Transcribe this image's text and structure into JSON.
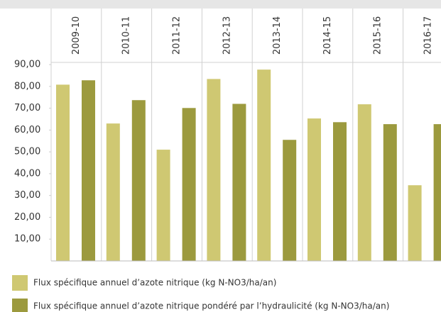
{
  "chart_data": {
    "type": "bar",
    "categories": [
      "2009-10",
      "2010-11",
      "2011-12",
      "2012-13",
      "2013-14",
      "2014-15",
      "2015-16",
      "2016-17"
    ],
    "series": [
      {
        "name": "Flux spécifique annuel d’azote nitrique (kg N-NO3/ha/an)",
        "color": "#cfc872",
        "values": [
          80.8,
          63,
          51,
          83.4,
          87.7,
          65.3,
          71.8,
          34.7
        ]
      },
      {
        "name": "Flux spécifique annuel d’azote nitrique pondéré par l’hydraulicité (kg N-NO3/ha/an)",
        "color": "#9c9a3e",
        "values": [
          82.8,
          73.7,
          70.1,
          72,
          55.5,
          63.6,
          62.7,
          62.7
        ]
      }
    ],
    "ylim": [
      0,
      91
    ],
    "yticks": [
      {
        "value": 10,
        "label": "10,00"
      },
      {
        "value": 20,
        "label": "20,00"
      },
      {
        "value": 30,
        "label": "30,00"
      },
      {
        "value": 40,
        "label": "40,00"
      },
      {
        "value": 50,
        "label": "50,00"
      },
      {
        "value": 60,
        "label": "60,00"
      },
      {
        "value": 70,
        "label": "70,00"
      },
      {
        "value": 80,
        "label": "80,00"
      },
      {
        "value": 90,
        "label": "90,00"
      }
    ]
  }
}
